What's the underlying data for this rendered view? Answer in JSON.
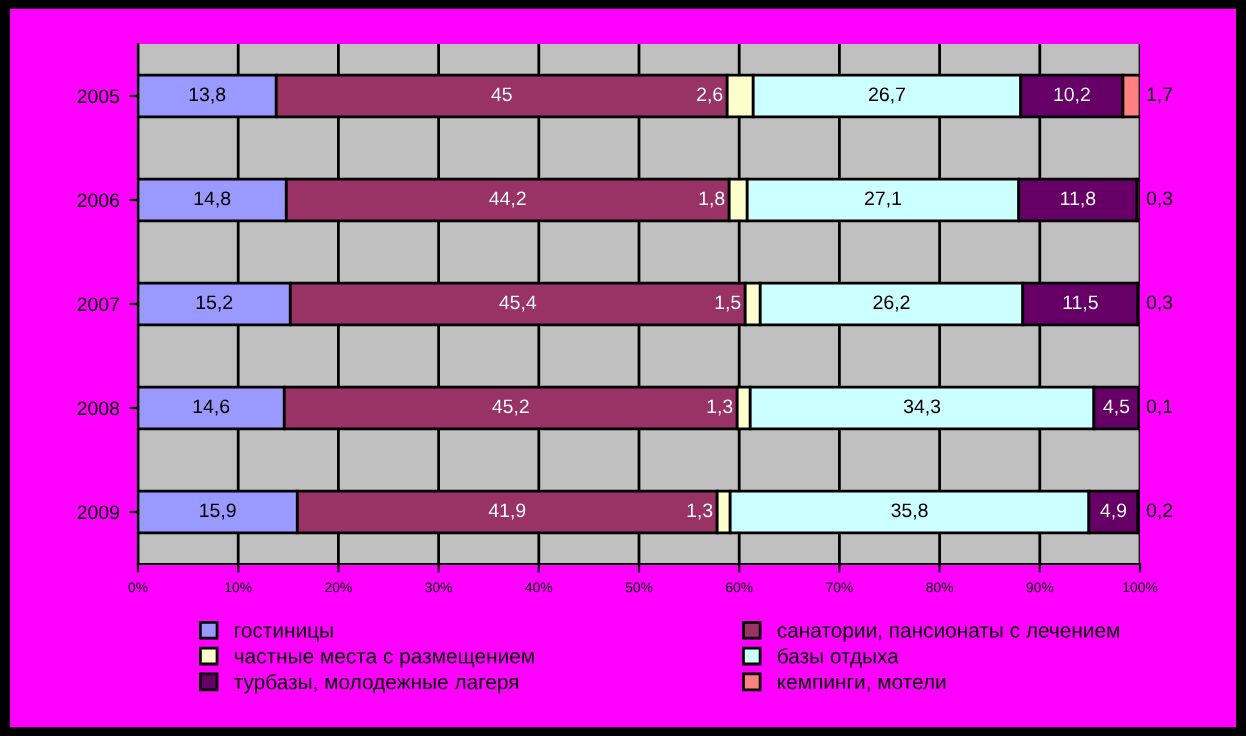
{
  "chart_data": {
    "type": "bar",
    "orientation": "horizontal",
    "stacked": true,
    "categories": [
      "2005",
      "2006",
      "2007",
      "2008",
      "2009"
    ],
    "series": [
      {
        "name": "гостиницы",
        "color": "#9999ff",
        "values": [
          13.8,
          14.8,
          15.2,
          14.6,
          15.9
        ],
        "value_labels": [
          "13,8",
          "14,8",
          "15,2",
          "14,6",
          "15,9"
        ]
      },
      {
        "name": "санатории, пансионаты с лечением",
        "color": "#993366",
        "values": [
          45,
          44.2,
          45.4,
          45.2,
          41.9
        ],
        "value_labels": [
          "45",
          "44,2",
          "45,4",
          "45,2",
          "41,9"
        ]
      },
      {
        "name": "частные места с размещением",
        "color": "#ffffcc",
        "values": [
          2.6,
          1.8,
          1.5,
          1.3,
          1.3
        ],
        "value_labels": [
          "2,6",
          "1,8",
          "1,5",
          "1,3",
          "1,3"
        ]
      },
      {
        "name": "базы отдыха",
        "color": "#ccffff",
        "values": [
          26.7,
          27.1,
          26.2,
          34.3,
          35.8
        ],
        "value_labels": [
          "26,7",
          "27,1",
          "26,2",
          "34,3",
          "35,8"
        ]
      },
      {
        "name": "турбазы, молодежные лагеря",
        "color": "#660066",
        "values": [
          10.2,
          11.8,
          11.5,
          4.5,
          4.9
        ],
        "value_labels": [
          "10,2",
          "11,8",
          "11,5",
          "4,5",
          "4,9"
        ]
      },
      {
        "name": "кемпинги, мотели",
        "color": "#ff8080",
        "values": [
          1.7,
          0.3,
          0.3,
          0.1,
          0.2
        ],
        "value_labels": [
          "1,7",
          "0,3",
          "0,3",
          "0,1",
          "0,2"
        ]
      }
    ],
    "xlim": [
      0,
      100
    ],
    "xticks": [
      {
        "value": 0,
        "label": "0%"
      },
      {
        "value": 10,
        "label": "10%"
      },
      {
        "value": 20,
        "label": "20%"
      },
      {
        "value": 30,
        "label": "30%"
      },
      {
        "value": 40,
        "label": "40%"
      },
      {
        "value": 50,
        "label": "50%"
      },
      {
        "value": 60,
        "label": "60%"
      },
      {
        "value": 70,
        "label": "70%"
      },
      {
        "value": 80,
        "label": "80%"
      },
      {
        "value": 90,
        "label": "90%"
      },
      {
        "value": 100,
        "label": "100%"
      }
    ],
    "grid": "x",
    "legend": "bottom"
  }
}
